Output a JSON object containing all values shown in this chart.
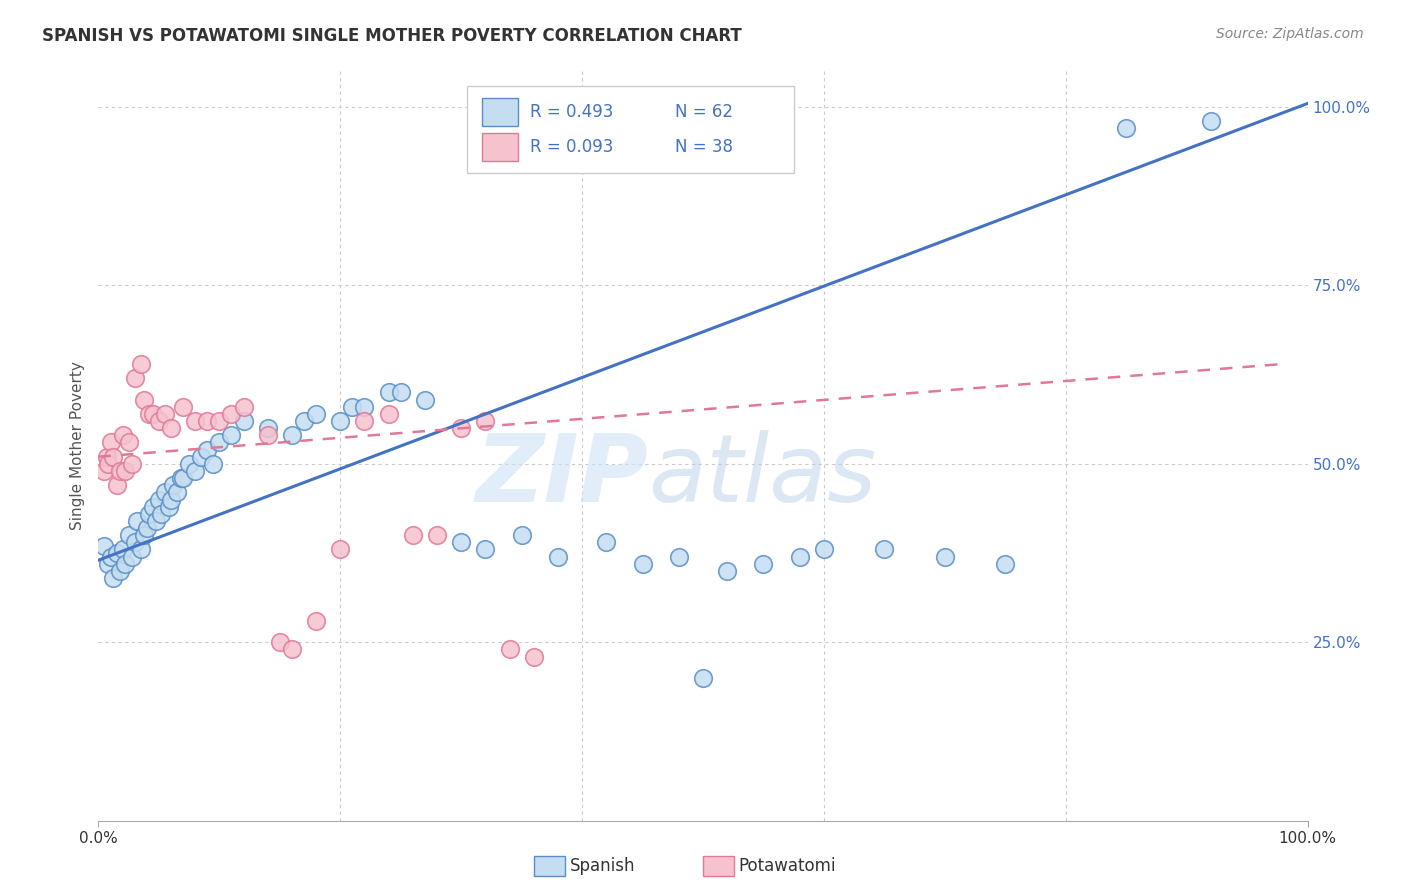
{
  "title": "SPANISH VS POTAWATOMI SINGLE MOTHER POVERTY CORRELATION CHART",
  "source": "Source: ZipAtlas.com",
  "ylabel": "Single Mother Poverty",
  "background_color": "#ffffff",
  "blue_scatter_x": [
    0.005,
    0.008,
    0.01,
    0.012,
    0.015,
    0.018,
    0.02,
    0.022,
    0.025,
    0.028,
    0.03,
    0.032,
    0.035,
    0.038,
    0.04,
    0.042,
    0.045,
    0.048,
    0.05,
    0.052,
    0.055,
    0.058,
    0.06,
    0.062,
    0.065,
    0.068,
    0.07,
    0.075,
    0.08,
    0.085,
    0.09,
    0.095,
    0.1,
    0.11,
    0.12,
    0.14,
    0.16,
    0.17,
    0.18,
    0.2,
    0.21,
    0.22,
    0.24,
    0.25,
    0.27,
    0.3,
    0.32,
    0.35,
    0.38,
    0.42,
    0.45,
    0.48,
    0.5,
    0.52,
    0.55,
    0.58,
    0.6,
    0.65,
    0.7,
    0.75,
    0.85,
    0.92
  ],
  "blue_scatter_y": [
    0.385,
    0.36,
    0.37,
    0.34,
    0.375,
    0.35,
    0.38,
    0.36,
    0.4,
    0.37,
    0.39,
    0.42,
    0.38,
    0.4,
    0.41,
    0.43,
    0.44,
    0.42,
    0.45,
    0.43,
    0.46,
    0.44,
    0.45,
    0.47,
    0.46,
    0.48,
    0.48,
    0.5,
    0.49,
    0.51,
    0.52,
    0.5,
    0.53,
    0.54,
    0.56,
    0.55,
    0.54,
    0.56,
    0.57,
    0.56,
    0.58,
    0.58,
    0.6,
    0.6,
    0.59,
    0.39,
    0.38,
    0.4,
    0.37,
    0.39,
    0.36,
    0.37,
    0.2,
    0.35,
    0.36,
    0.37,
    0.38,
    0.38,
    0.37,
    0.36,
    0.97,
    0.98
  ],
  "pink_scatter_x": [
    0.005,
    0.007,
    0.008,
    0.01,
    0.012,
    0.015,
    0.018,
    0.02,
    0.022,
    0.025,
    0.028,
    0.03,
    0.035,
    0.038,
    0.042,
    0.045,
    0.05,
    0.055,
    0.06,
    0.07,
    0.08,
    0.09,
    0.1,
    0.11,
    0.12,
    0.14,
    0.15,
    0.16,
    0.18,
    0.2,
    0.22,
    0.24,
    0.26,
    0.28,
    0.3,
    0.32,
    0.34,
    0.36
  ],
  "pink_scatter_y": [
    0.49,
    0.51,
    0.5,
    0.53,
    0.51,
    0.47,
    0.49,
    0.54,
    0.49,
    0.53,
    0.5,
    0.62,
    0.64,
    0.59,
    0.57,
    0.57,
    0.56,
    0.57,
    0.55,
    0.58,
    0.56,
    0.56,
    0.56,
    0.57,
    0.58,
    0.54,
    0.25,
    0.24,
    0.28,
    0.38,
    0.56,
    0.57,
    0.4,
    0.4,
    0.55,
    0.56,
    0.24,
    0.23
  ],
  "blue_line_x": [
    0.0,
    1.0
  ],
  "blue_line_y": [
    0.365,
    1.005
  ],
  "pink_line_x": [
    0.0,
    0.98
  ],
  "pink_line_y": [
    0.51,
    0.64
  ],
  "xlim": [
    0.0,
    1.0
  ],
  "ylim": [
    0.0,
    1.05
  ],
  "yticks": [
    0.25,
    0.5,
    0.75,
    1.0
  ],
  "ytick_labels": [
    "25.0%",
    "50.0%",
    "75.0%",
    "100.0%"
  ]
}
